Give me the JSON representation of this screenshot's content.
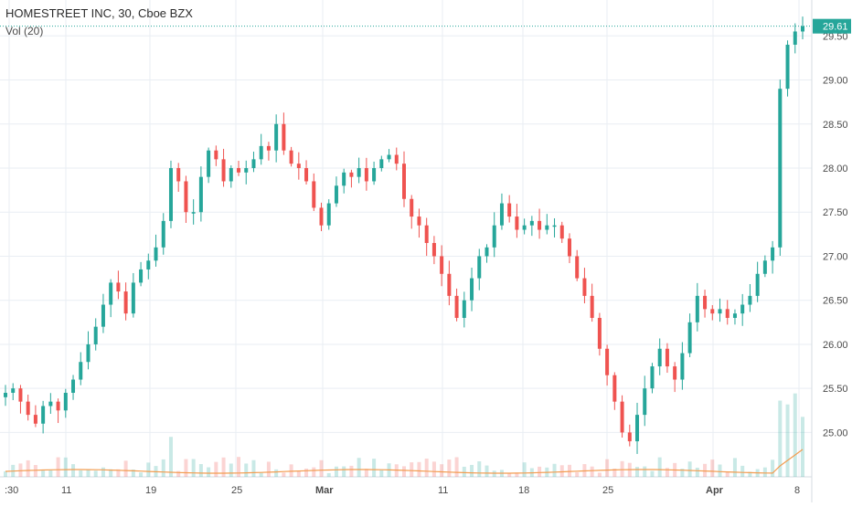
{
  "header": {
    "title": "HOMESTREET INC, 30, Cboe BZX",
    "indicator": "Vol (20)",
    "last_price": "29.61"
  },
  "colors": {
    "up": "#26a69a",
    "down": "#ef5350",
    "grid": "#e9eef3",
    "price_tag": "#26a69a",
    "vol_ma": "#f39c4f",
    "axis_text": "#4a4a4a"
  },
  "chart_data": {
    "type": "candlestick",
    "title": "HOMESTREET INC, 30, Cboe BZX",
    "ylim": [
      24.6,
      29.7
    ],
    "y_ticks": [
      "29.50",
      "29.00",
      "28.50",
      "28.00",
      "27.50",
      "27.00",
      "26.50",
      "26.00",
      "25.50",
      "25.00"
    ],
    "x_ticks": [
      ":30",
      "11",
      "19",
      "25",
      "Mar",
      "11",
      "18",
      "25",
      "Apr",
      "8"
    ],
    "last_price": 29.61,
    "grid": true,
    "volume_indicator": "Vol (20)",
    "price_path": [
      25.45,
      25.5,
      25.35,
      25.2,
      25.1,
      25.3,
      25.35,
      25.25,
      25.45,
      25.6,
      25.8,
      26.0,
      26.2,
      26.45,
      26.7,
      26.6,
      26.35,
      26.7,
      26.85,
      26.95,
      27.1,
      27.4,
      28.0,
      27.85,
      27.5,
      27.5,
      27.9,
      28.2,
      28.1,
      27.85,
      28.0,
      27.95,
      28.0,
      28.1,
      28.25,
      28.2,
      28.5,
      28.2,
      28.05,
      28.0,
      27.85,
      27.55,
      27.35,
      27.6,
      27.8,
      27.95,
      27.9,
      28.0,
      27.85,
      28.0,
      28.1,
      28.15,
      28.05,
      27.65,
      27.45,
      27.35,
      27.15,
      27.0,
      26.8,
      26.55,
      26.3,
      26.5,
      26.75,
      27.0,
      27.1,
      27.35,
      27.6,
      27.45,
      27.3,
      27.35,
      27.4,
      27.3,
      27.35,
      27.35,
      27.2,
      27.0,
      26.75,
      26.55,
      26.3,
      25.95,
      25.65,
      25.35,
      25.0,
      24.9,
      25.2,
      25.5,
      25.75,
      25.95,
      25.75,
      25.6,
      25.9,
      26.25,
      26.55,
      26.4,
      26.35,
      26.4,
      26.3,
      26.35,
      26.45,
      26.55,
      26.8,
      26.95,
      27.1,
      28.9,
      29.4,
      29.55,
      29.61
    ]
  }
}
